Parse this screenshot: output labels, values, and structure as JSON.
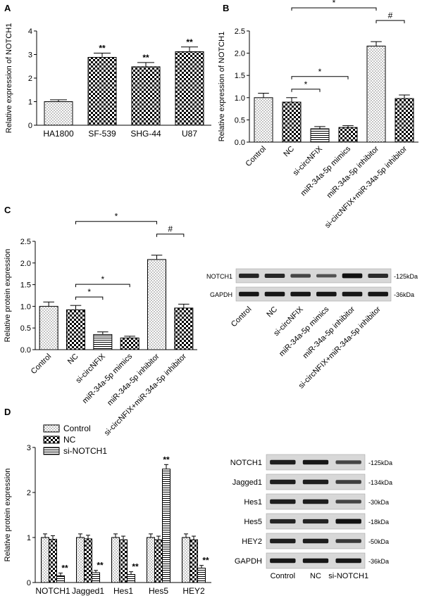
{
  "panels": {
    "a": "A",
    "b": "B",
    "c": "C",
    "d": "D"
  },
  "chart_data": [
    {
      "panel": "A",
      "type": "bar",
      "ylabel": "Relative expression of NOTCH1",
      "ylim": [
        0,
        4
      ],
      "yticks": [
        "0",
        "1",
        "2",
        "3",
        "4"
      ],
      "categories": [
        "HA1800",
        "SF-539",
        "SHG-44",
        "U87"
      ],
      "values": [
        1.0,
        2.88,
        2.48,
        3.12
      ],
      "errors": [
        0.08,
        0.18,
        0.18,
        0.2
      ],
      "annotations": [
        "",
        "**",
        "**",
        "**"
      ],
      "patterns": [
        "dots",
        "check",
        "check",
        "check"
      ]
    },
    {
      "panel": "B",
      "type": "bar",
      "ylabel": "Relative expression of NOTCH1",
      "ylim": [
        0,
        2.5
      ],
      "yticks": [
        "0.0",
        "0.5",
        "1.0",
        "1.5",
        "2.0",
        "2.5"
      ],
      "categories": [
        "Control",
        "NC",
        "si-circNFIX",
        "miR-34a-5p mimics",
        "miR-34a-5p inhibitor",
        "si-circNFIX+miR-34a-5p inhibitor"
      ],
      "values": [
        1.0,
        0.9,
        0.3,
        0.33,
        2.16,
        0.98
      ],
      "errors": [
        0.1,
        0.1,
        0.05,
        0.04,
        0.1,
        0.08
      ],
      "patterns": [
        "dots",
        "check",
        "hlines",
        "check",
        "dots",
        "check"
      ],
      "comparisons": [
        {
          "from": 1,
          "to": 2,
          "label": "*"
        },
        {
          "from": 1,
          "to": 3,
          "label": "*"
        },
        {
          "from": 1,
          "to": 4,
          "label": "*"
        },
        {
          "from": 4,
          "to": 5,
          "label": "#"
        }
      ]
    },
    {
      "panel": "C",
      "type": "bar",
      "ylabel": "Relative protein expression",
      "ylim": [
        0,
        2.5
      ],
      "yticks": [
        "0.0",
        "0.5",
        "1.0",
        "1.5",
        "2.0",
        "2.5"
      ],
      "categories": [
        "Control",
        "NC",
        "si-circNFIX",
        "miR-34a-5p mimics",
        "miR-34a-5p inhibitor",
        "si-circNFIX+miR-34a-5p inhibitor"
      ],
      "values": [
        1.0,
        0.92,
        0.35,
        0.27,
        2.08,
        0.96
      ],
      "errors": [
        0.1,
        0.1,
        0.06,
        0.04,
        0.1,
        0.09
      ],
      "patterns": [
        "dots",
        "check",
        "hlines",
        "check",
        "dots",
        "check"
      ],
      "comparisons": [
        {
          "from": 1,
          "to": 2,
          "label": "*"
        },
        {
          "from": 1,
          "to": 3,
          "label": "*"
        },
        {
          "from": 1,
          "to": 4,
          "label": "*"
        },
        {
          "from": 4,
          "to": 5,
          "label": "#"
        }
      ]
    },
    {
      "panel": "D",
      "type": "bar",
      "ylabel": "Relative protein expression",
      "ylim": [
        0,
        3
      ],
      "yticks": [
        "0",
        "1",
        "2",
        "3"
      ],
      "categories": [
        "NOTCH1",
        "Jagged1",
        "Hes1",
        "Hes5",
        "HEY2"
      ],
      "series": [
        {
          "name": "Control",
          "pattern": "dots",
          "values": [
            1.0,
            1.0,
            1.0,
            1.0,
            1.0
          ],
          "errors": [
            0.08,
            0.08,
            0.08,
            0.08,
            0.08
          ],
          "annotations": [
            "",
            "",
            "",
            "",
            ""
          ]
        },
        {
          "name": "NC",
          "pattern": "check",
          "values": [
            0.96,
            0.97,
            0.95,
            0.95,
            0.95
          ],
          "errors": [
            0.08,
            0.08,
            0.08,
            0.08,
            0.08
          ],
          "annotations": [
            "",
            "",
            "",
            "",
            ""
          ]
        },
        {
          "name": "si-NOTCH1",
          "pattern": "hlines",
          "values": [
            0.15,
            0.22,
            0.18,
            2.52,
            0.32
          ],
          "errors": [
            0.06,
            0.05,
            0.06,
            0.1,
            0.06
          ],
          "annotations": [
            "**",
            "**",
            "**",
            "**",
            "**"
          ]
        }
      ],
      "legend": "top-left"
    }
  ],
  "blot_c": {
    "lanes": [
      "Control",
      "NC",
      "si-circNFIX",
      "miR-34a-5p mimics",
      "miR-34a-5p inhibitor",
      "si-circNFIX+miR-34a-5p inhibitor"
    ],
    "rows": [
      {
        "name": "NOTCH1",
        "kda": "-125kDa",
        "intensity": [
          0.8,
          0.78,
          0.55,
          0.45,
          0.95,
          0.75
        ]
      },
      {
        "name": "GAPDH",
        "kda": "-36kDa",
        "intensity": [
          0.9,
          0.9,
          0.9,
          0.9,
          0.9,
          0.9
        ]
      }
    ]
  },
  "blot_d": {
    "lanes": [
      "Control",
      "NC",
      "si-NOTCH1"
    ],
    "rows": [
      {
        "name": "NOTCH1",
        "kda": "-125kDa",
        "intensity": [
          0.85,
          0.9,
          0.55
        ]
      },
      {
        "name": "Jagged1",
        "kda": "-134kDa",
        "intensity": [
          0.85,
          0.85,
          0.6
        ]
      },
      {
        "name": "Hes1",
        "kda": "-30kDa",
        "intensity": [
          0.85,
          0.85,
          0.55
        ]
      },
      {
        "name": "Hes5",
        "kda": "-18kDa",
        "intensity": [
          0.8,
          0.8,
          0.95
        ]
      },
      {
        "name": "HEY2",
        "kda": "-50kDa",
        "intensity": [
          0.85,
          0.85,
          0.65
        ]
      },
      {
        "name": "GAPDH",
        "kda": "-36kDa",
        "intensity": [
          0.9,
          0.9,
          0.9
        ]
      }
    ]
  }
}
